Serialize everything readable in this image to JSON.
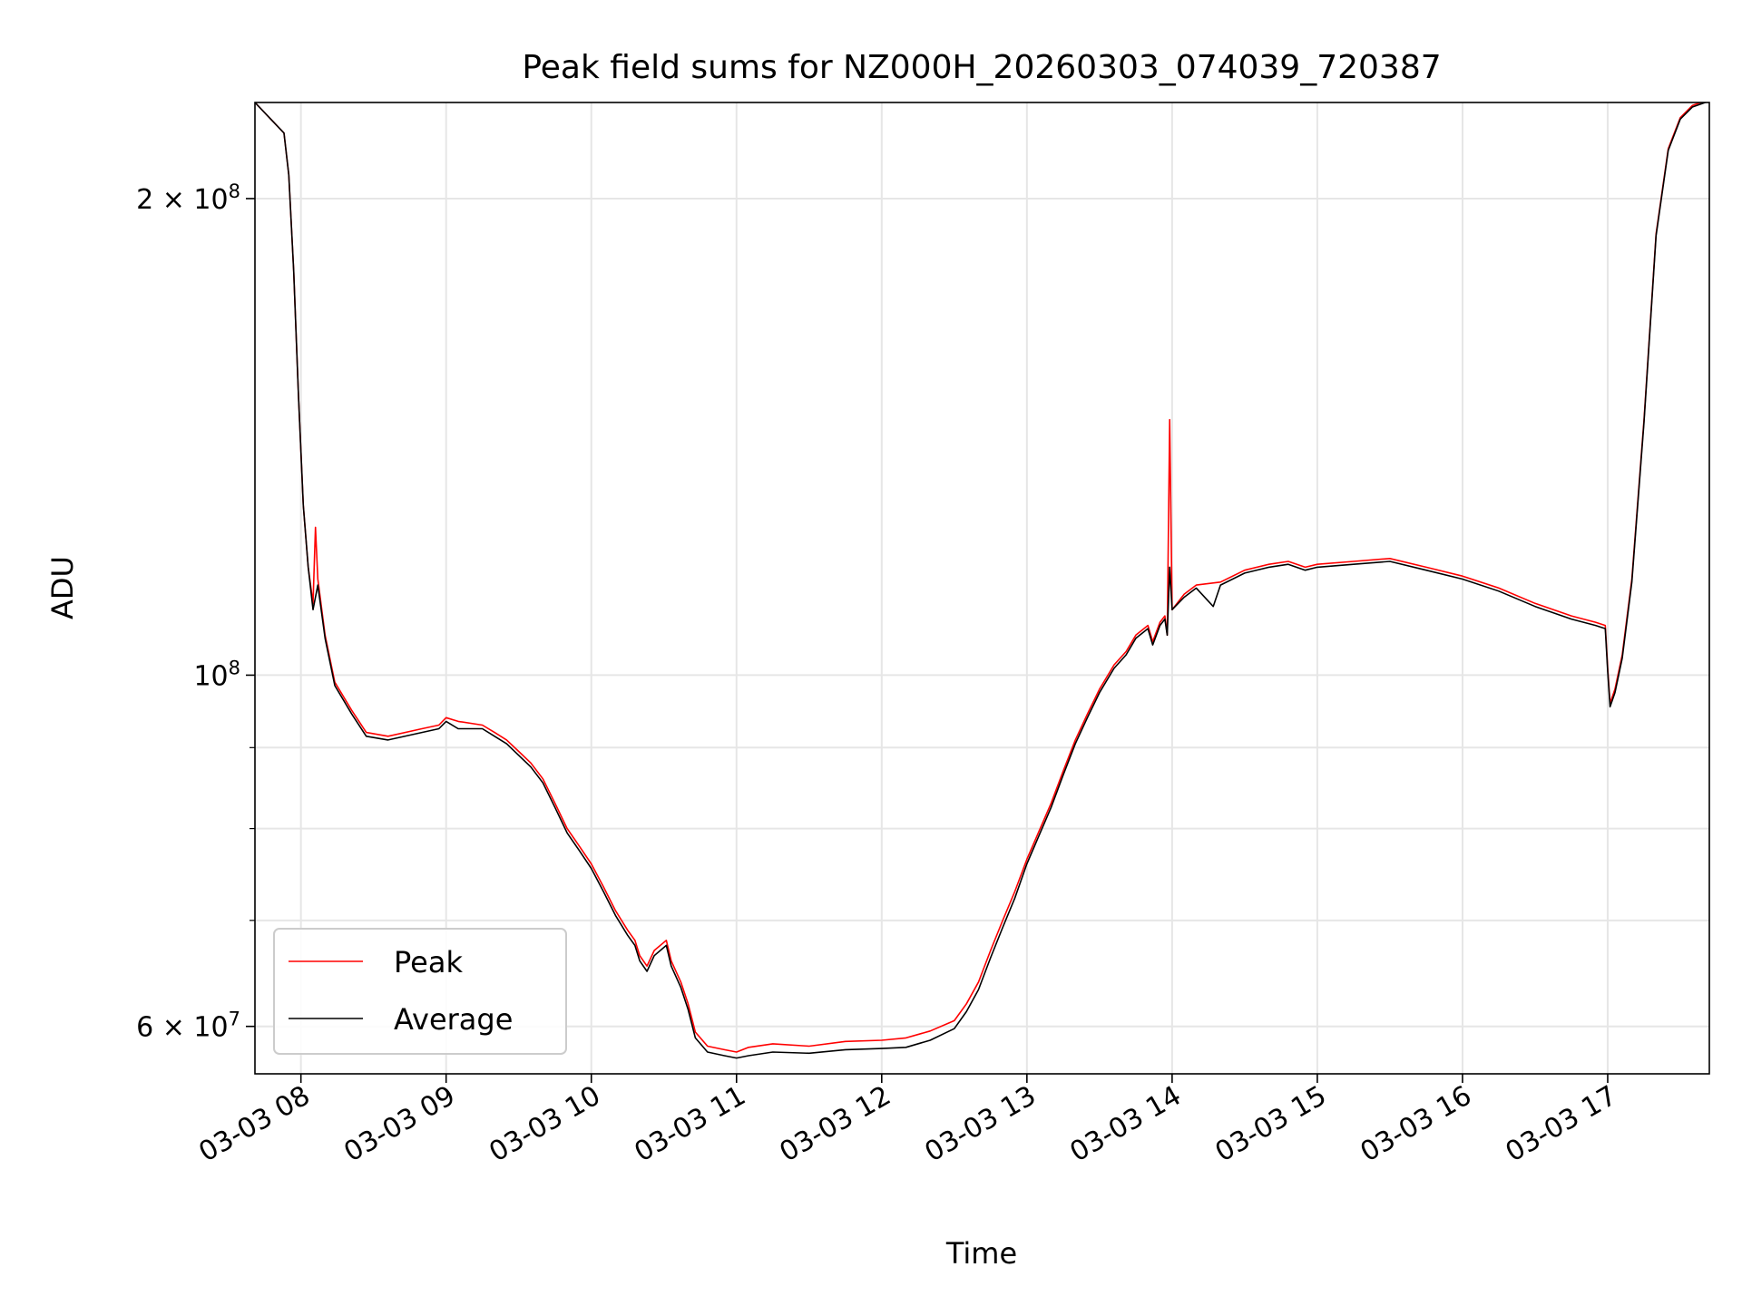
{
  "chart_data": {
    "type": "line",
    "title": "Peak field sums for NZ000H_20260303_074039_720387",
    "xlabel": "Time",
    "ylabel": "ADU",
    "yscale": "log",
    "grid": true,
    "legend_position": "lower-left",
    "xlim": [
      "2026-03-03 07:41",
      "2026-03-03 17:42"
    ],
    "ylim": [
      56000000,
      230000000
    ],
    "x_ticks": [
      {
        "value": "2026-03-03 08:00",
        "label": "03-03 08"
      },
      {
        "value": "2026-03-03 09:00",
        "label": "03-03 09"
      },
      {
        "value": "2026-03-03 10:00",
        "label": "03-03 10"
      },
      {
        "value": "2026-03-03 11:00",
        "label": "03-03 11"
      },
      {
        "value": "2026-03-03 12:00",
        "label": "03-03 12"
      },
      {
        "value": "2026-03-03 13:00",
        "label": "03-03 13"
      },
      {
        "value": "2026-03-03 14:00",
        "label": "03-03 14"
      },
      {
        "value": "2026-03-03 15:00",
        "label": "03-03 15"
      },
      {
        "value": "2026-03-03 16:00",
        "label": "03-03 16"
      },
      {
        "value": "2026-03-03 17:00",
        "label": "03-03 17"
      }
    ],
    "y_ticks": [
      {
        "value": 60000000,
        "label": "6 × 10",
        "exp": "7"
      },
      {
        "value": 100000000,
        "label": "10",
        "exp": "8"
      },
      {
        "value": 200000000,
        "label": "2 × 10",
        "exp": "8"
      }
    ],
    "y_minor_ticks": [
      70000000,
      80000000,
      90000000
    ],
    "series": [
      {
        "name": "Peak",
        "color": "#ff0000",
        "x": [
          "2026-03-03 07:41",
          "2026-03-03 07:53",
          "2026-03-03 07:55",
          "2026-03-03 07:57",
          "2026-03-03 07:59",
          "2026-03-03 08:01",
          "2026-03-03 08:03",
          "2026-03-03 08:05",
          "2026-03-03 08:06",
          "2026-03-03 08:07",
          "2026-03-03 08:10",
          "2026-03-03 08:14",
          "2026-03-03 08:21",
          "2026-03-03 08:27",
          "2026-03-03 08:36",
          "2026-03-03 08:50",
          "2026-03-03 08:57",
          "2026-03-03 09:00",
          "2026-03-03 09:05",
          "2026-03-03 09:15",
          "2026-03-03 09:20",
          "2026-03-03 09:25",
          "2026-03-03 09:30",
          "2026-03-03 09:35",
          "2026-03-03 09:40",
          "2026-03-03 09:45",
          "2026-03-03 09:50",
          "2026-03-03 09:55",
          "2026-03-03 10:00",
          "2026-03-03 10:05",
          "2026-03-03 10:10",
          "2026-03-03 10:15",
          "2026-03-03 10:18",
          "2026-03-03 10:20",
          "2026-03-03 10:23",
          "2026-03-03 10:26",
          "2026-03-03 10:31",
          "2026-03-03 10:33",
          "2026-03-03 10:37",
          "2026-03-03 10:40",
          "2026-03-03 10:43",
          "2026-03-03 10:48",
          "2026-03-03 10:55",
          "2026-03-03 11:00",
          "2026-03-03 11:05",
          "2026-03-03 11:15",
          "2026-03-03 11:30",
          "2026-03-03 11:45",
          "2026-03-03 12:00",
          "2026-03-03 12:10",
          "2026-03-03 12:20",
          "2026-03-03 12:30",
          "2026-03-03 12:35",
          "2026-03-03 12:40",
          "2026-03-03 12:45",
          "2026-03-03 12:50",
          "2026-03-03 12:55",
          "2026-03-03 13:00",
          "2026-03-03 13:10",
          "2026-03-03 13:15",
          "2026-03-03 13:20",
          "2026-03-03 13:25",
          "2026-03-03 13:30",
          "2026-03-03 13:36",
          "2026-03-03 13:41",
          "2026-03-03 13:45",
          "2026-03-03 13:50",
          "2026-03-03 13:52",
          "2026-03-03 13:55",
          "2026-03-03 13:57",
          "2026-03-03 13:58",
          "2026-03-03 13:59",
          "2026-03-03 14:00",
          "2026-03-03 14:05",
          "2026-03-03 14:10",
          "2026-03-03 14:20",
          "2026-03-03 14:30",
          "2026-03-03 14:40",
          "2026-03-03 14:48",
          "2026-03-03 14:55",
          "2026-03-03 15:00",
          "2026-03-03 15:15",
          "2026-03-03 15:30",
          "2026-03-03 15:45",
          "2026-03-03 16:00",
          "2026-03-03 16:15",
          "2026-03-03 16:30",
          "2026-03-03 16:45",
          "2026-03-03 16:55",
          "2026-03-03 16:59",
          "2026-03-03 17:00",
          "2026-03-03 17:01",
          "2026-03-03 17:03",
          "2026-03-03 17:06",
          "2026-03-03 17:10",
          "2026-03-03 17:15",
          "2026-03-03 17:20",
          "2026-03-03 17:25",
          "2026-03-03 17:30",
          "2026-03-03 17:35",
          "2026-03-03 17:42"
        ],
        "y": [
          230000000,
          220000000,
          207000000,
          180000000,
          150000000,
          128000000,
          117000000,
          111000000,
          124000000,
          115000000,
          106000000,
          99000000,
          95000000,
          92000000,
          91500000,
          92500000,
          93000000,
          94000000,
          93500000,
          93000000,
          92000000,
          91000000,
          89500000,
          88000000,
          86000000,
          83000000,
          80000000,
          78000000,
          76000000,
          73500000,
          71000000,
          69000000,
          68000000,
          66500000,
          65500000,
          67000000,
          68000000,
          66000000,
          64000000,
          62000000,
          59500000,
          58300000,
          58000000,
          57800000,
          58200000,
          58500000,
          58300000,
          58700000,
          58800000,
          59000000,
          59600000,
          60500000,
          62000000,
          64000000,
          67000000,
          70000000,
          73000000,
          76500000,
          83000000,
          87000000,
          91000000,
          94500000,
          98000000,
          101500000,
          103500000,
          106000000,
          107500000,
          105000000,
          108000000,
          109000000,
          106000000,
          145000000,
          110000000,
          112500000,
          114000000,
          114500000,
          116500000,
          117500000,
          118000000,
          117000000,
          117500000,
          118000000,
          118500000,
          117000000,
          115500000,
          113500000,
          111000000,
          109000000,
          108000000,
          107500000,
          101000000,
          96000000,
          98000000,
          103000000,
          115000000,
          145000000,
          190000000,
          215000000,
          225000000,
          229000000,
          231000000
        ]
      },
      {
        "name": "Average",
        "color": "#000000",
        "x": [
          "2026-03-03 07:41",
          "2026-03-03 07:53",
          "2026-03-03 07:55",
          "2026-03-03 07:57",
          "2026-03-03 07:59",
          "2026-03-03 08:01",
          "2026-03-03 08:03",
          "2026-03-03 08:05",
          "2026-03-03 08:07",
          "2026-03-03 08:10",
          "2026-03-03 08:14",
          "2026-03-03 08:21",
          "2026-03-03 08:27",
          "2026-03-03 08:36",
          "2026-03-03 08:50",
          "2026-03-03 08:57",
          "2026-03-03 09:00",
          "2026-03-03 09:05",
          "2026-03-03 09:15",
          "2026-03-03 09:20",
          "2026-03-03 09:25",
          "2026-03-03 09:30",
          "2026-03-03 09:35",
          "2026-03-03 09:40",
          "2026-03-03 09:45",
          "2026-03-03 09:50",
          "2026-03-03 09:55",
          "2026-03-03 10:00",
          "2026-03-03 10:05",
          "2026-03-03 10:10",
          "2026-03-03 10:15",
          "2026-03-03 10:18",
          "2026-03-03 10:20",
          "2026-03-03 10:23",
          "2026-03-03 10:26",
          "2026-03-03 10:31",
          "2026-03-03 10:33",
          "2026-03-03 10:37",
          "2026-03-03 10:40",
          "2026-03-03 10:43",
          "2026-03-03 10:48",
          "2026-03-03 10:55",
          "2026-03-03 11:00",
          "2026-03-03 11:05",
          "2026-03-03 11:15",
          "2026-03-03 11:30",
          "2026-03-03 11:45",
          "2026-03-03 12:00",
          "2026-03-03 12:10",
          "2026-03-03 12:20",
          "2026-03-03 12:30",
          "2026-03-03 12:35",
          "2026-03-03 12:40",
          "2026-03-03 12:45",
          "2026-03-03 12:50",
          "2026-03-03 12:55",
          "2026-03-03 13:00",
          "2026-03-03 13:10",
          "2026-03-03 13:15",
          "2026-03-03 13:20",
          "2026-03-03 13:25",
          "2026-03-03 13:30",
          "2026-03-03 13:36",
          "2026-03-03 13:41",
          "2026-03-03 13:45",
          "2026-03-03 13:50",
          "2026-03-03 13:52",
          "2026-03-03 13:55",
          "2026-03-03 13:57",
          "2026-03-03 13:58",
          "2026-03-03 13:59",
          "2026-03-03 14:00",
          "2026-03-03 14:05",
          "2026-03-03 14:10",
          "2026-03-03 14:17",
          "2026-03-03 14:20",
          "2026-03-03 14:30",
          "2026-03-03 14:40",
          "2026-03-03 14:48",
          "2026-03-03 14:55",
          "2026-03-03 15:00",
          "2026-03-03 15:15",
          "2026-03-03 15:30",
          "2026-03-03 15:45",
          "2026-03-03 16:00",
          "2026-03-03 16:15",
          "2026-03-03 16:30",
          "2026-03-03 16:45",
          "2026-03-03 16:55",
          "2026-03-03 16:59",
          "2026-03-03 17:00",
          "2026-03-03 17:01",
          "2026-03-03 17:03",
          "2026-03-03 17:06",
          "2026-03-03 17:10",
          "2026-03-03 17:15",
          "2026-03-03 17:20",
          "2026-03-03 17:25",
          "2026-03-03 17:30",
          "2026-03-03 17:35",
          "2026-03-03 17:42"
        ],
        "y": [
          230000000,
          220000000,
          207000000,
          180000000,
          150000000,
          128000000,
          117000000,
          110000000,
          114000000,
          105500000,
          98500000,
          94500000,
          91500000,
          91000000,
          92000000,
          92500000,
          93500000,
          92500000,
          92500000,
          91500000,
          90500000,
          89000000,
          87500000,
          85500000,
          82500000,
          79500000,
          77500000,
          75500000,
          73000000,
          70500000,
          68500000,
          67500000,
          66000000,
          65000000,
          66500000,
          67500000,
          65500000,
          63500000,
          61500000,
          59000000,
          57800000,
          57500000,
          57300000,
          57500000,
          57800000,
          57700000,
          58000000,
          58100000,
          58200000,
          58800000,
          59800000,
          61300000,
          63300000,
          66300000,
          69300000,
          72300000,
          76000000,
          82500000,
          86500000,
          90500000,
          94000000,
          97500000,
          101000000,
          103000000,
          105500000,
          107000000,
          104500000,
          107500000,
          108500000,
          106000000,
          117000000,
          110000000,
          112000000,
          113500000,
          110500000,
          114000000,
          116000000,
          117000000,
          117500000,
          116500000,
          117000000,
          117500000,
          118000000,
          116500000,
          115000000,
          113000000,
          110500000,
          108500000,
          107500000,
          107000000,
          100500000,
          95500000,
          97500000,
          102500000,
          114500000,
          144500000,
          189500000,
          214500000,
          224500000,
          228500000,
          230500000
        ]
      }
    ]
  }
}
